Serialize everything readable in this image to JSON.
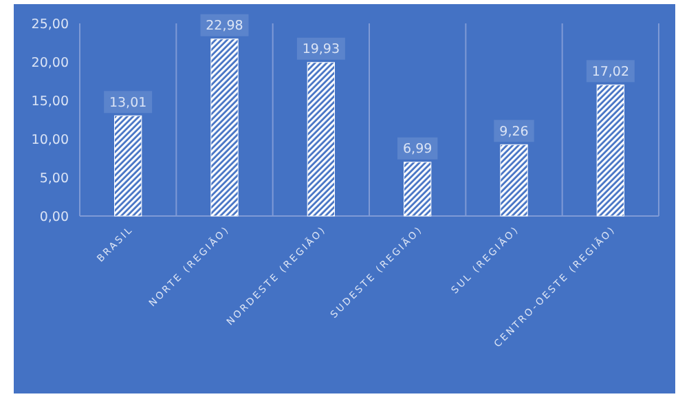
{
  "chart_data": {
    "type": "bar",
    "categories": [
      "BRASIL",
      "NORTE (REGIÃO)",
      "NORDESTE (REGIÃO)",
      "SUDESTE (REGIÃO)",
      "SUL (REGIÃO)",
      "CENTRO-OESTE (REGIÃO)"
    ],
    "values": [
      13.01,
      22.98,
      19.93,
      6.99,
      9.26,
      17.02
    ],
    "value_labels": [
      "13,01",
      "22,98",
      "19,93",
      "6,99",
      "9,26",
      "17,02"
    ],
    "color": "#ffffff",
    "ylim": [
      0,
      25
    ],
    "yticks": [
      {
        "value": 0,
        "label": "0,00"
      },
      {
        "value": 5,
        "label": "5,00"
      },
      {
        "value": 10,
        "label": "10,00"
      },
      {
        "value": 15,
        "label": "15,00"
      },
      {
        "value": 20,
        "label": "20,00"
      },
      {
        "value": 25,
        "label": "25,00"
      }
    ],
    "grid": "x"
  }
}
